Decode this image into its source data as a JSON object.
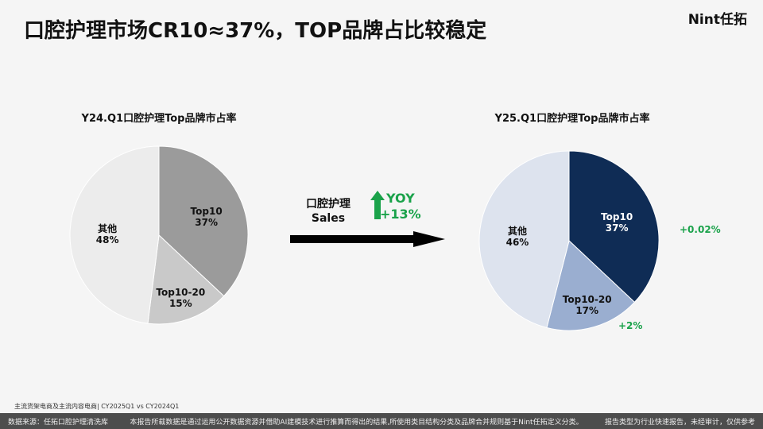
{
  "title": "口腔护理市场CR10≈37%，TOP品牌占比较稳定",
  "logo": "Nint任拓",
  "middle": {
    "label1": "口腔护理",
    "label2": "Sales",
    "yoy_label": "YOY",
    "yoy_value": "+13%"
  },
  "source_note": "主流货架电商及主流内容电商| CY2025Q1 vs CY2024Q1",
  "footer": {
    "source": "数据来源：任拓口腔护理清洗库",
    "note": "本报告所载数据是通过运用公开数据资源并借助AI建模技术进行推算而得出的结果,所使用类目结构分类及品牌合并规则基于Nint任拓定义分类。",
    "disclaimer": "报告类型为行业快速报告，未经审计，仅供参考"
  },
  "chart_data": [
    {
      "type": "pie",
      "title": "Y24.Q1口腔护理Top品牌市占率",
      "categories": [
        "Top10",
        "Top10-20",
        "其他"
      ],
      "values": [
        37,
        15,
        48
      ],
      "labels": [
        "37%",
        "15%",
        "48%"
      ],
      "colors": [
        "#9b9b9b",
        "#c9c9c9",
        "#ececec"
      ]
    },
    {
      "type": "pie",
      "title": "Y25.Q1口腔护理Top品牌市占率",
      "categories": [
        "Top10",
        "Top10-20",
        "其他"
      ],
      "values": [
        37,
        17,
        46
      ],
      "labels": [
        "37%",
        "17%",
        "46%"
      ],
      "colors": [
        "#0f2c55",
        "#9aaed0",
        "#dde3ee"
      ],
      "annotations": [
        "+0.02%",
        "+2%"
      ]
    }
  ]
}
